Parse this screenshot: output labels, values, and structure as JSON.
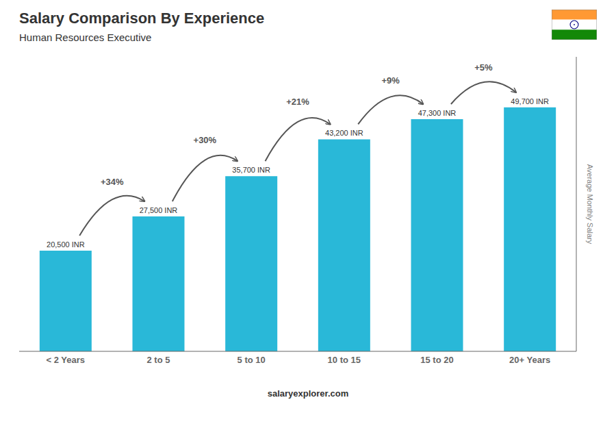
{
  "chart_data": {
    "type": "bar",
    "title": "Salary Comparison By Experience",
    "subtitle": "Human Resources Executive",
    "categories": [
      "< 2 Years",
      "2 to 5",
      "5 to 10",
      "10 to 15",
      "15 to 20",
      "20+ Years"
    ],
    "values": [
      20500,
      27500,
      35700,
      43200,
      47300,
      49700
    ],
    "value_labels": [
      "20,500 INR",
      "27,500 INR",
      "35,700 INR",
      "43,200 INR",
      "47,300 INR",
      "49,700 INR"
    ],
    "data_labels": true,
    "color": "#29b8d8",
    "ylim": [
      0,
      60000
    ],
    "ylabel": "Average Monthly Salary",
    "tick_labels": "x",
    "grid": false,
    "annotations": [
      "+34%",
      "+30%",
      "+21%",
      "+9%",
      "+5%"
    ],
    "footer": "salaryexplorer.com"
  }
}
